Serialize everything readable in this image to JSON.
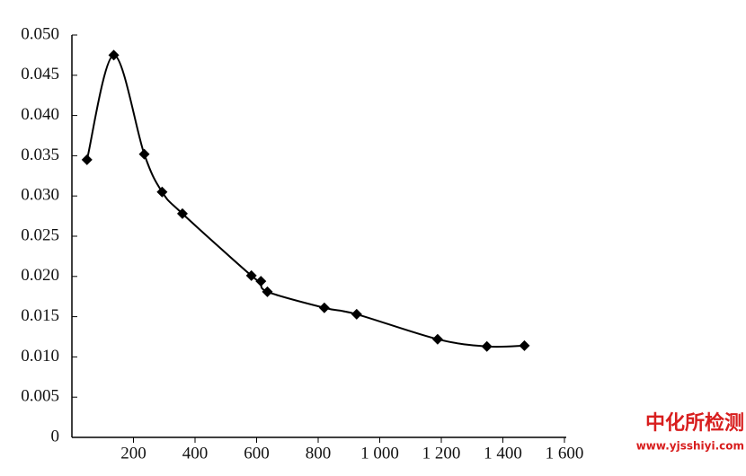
{
  "chart_data": {
    "type": "scatter-line",
    "x": [
      49,
      136,
      235,
      293,
      359,
      583,
      614,
      635,
      820,
      925,
      1188,
      1348,
      1470
    ],
    "series": [
      {
        "color": "#000000",
        "values": [
          0.0345,
          0.0475,
          0.0352,
          0.0305,
          0.0278,
          0.0201,
          0.0194,
          0.0181,
          0.0161,
          0.0153,
          0.0122,
          0.0113,
          0.0114
        ]
      }
    ],
    "xlim": [
      0,
      1600
    ],
    "xticks": [
      200,
      400,
      600,
      800,
      {
        "value": 1000,
        "label": "1 000"
      },
      {
        "value": 1200,
        "label": "1 200"
      },
      {
        "value": 1400,
        "label": "1 400"
      },
      {
        "value": 1600,
        "label": "1 600"
      }
    ],
    "ylim": [
      0,
      0.05
    ],
    "yticks": [
      0,
      0.005,
      {
        "value": 0.01,
        "label": "0.010"
      },
      0.015,
      {
        "value": 0.02,
        "label": "0.020"
      },
      0.025,
      {
        "value": 0.03,
        "label": "0.030"
      },
      0.035,
      {
        "value": 0.04,
        "label": "0.040"
      },
      0.045,
      {
        "value": 0.05,
        "label": "0.050"
      }
    ],
    "annotations": [
      "中化所检测",
      "www.yjsshiyi.com"
    ]
  }
}
